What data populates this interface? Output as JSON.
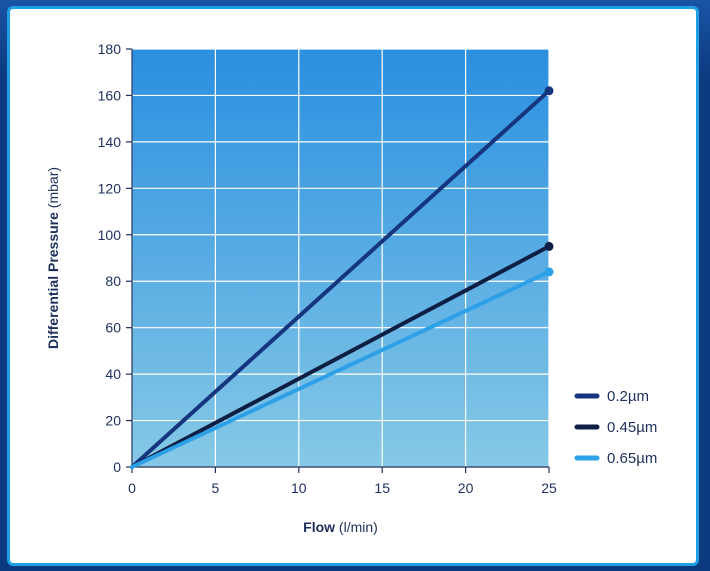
{
  "chart_data": {
    "type": "line",
    "title": "",
    "xlabel": {
      "bold": "Flow",
      "unit": " (l/min)"
    },
    "ylabel": {
      "bold": "Differential Pressure",
      "unit": " (mbar)"
    },
    "xlim": [
      0,
      25
    ],
    "ylim": [
      0,
      180
    ],
    "x_ticks": [
      "0",
      "5",
      "10",
      "15",
      "20",
      "25"
    ],
    "y_ticks": [
      "0",
      "20",
      "40",
      "60",
      "80",
      "100",
      "120",
      "140",
      "160",
      "180"
    ],
    "grid": true,
    "legend_position": "bottom-right",
    "series": [
      {
        "name": "0.2µm",
        "color": "#16357f",
        "points": [
          [
            0,
            0
          ],
          [
            25,
            162
          ]
        ]
      },
      {
        "name": "0.45µm",
        "color": "#0e1f45",
        "points": [
          [
            0,
            0
          ],
          [
            25,
            95
          ]
        ]
      },
      {
        "name": "0.65µm",
        "color": "#2ea0e8",
        "points": [
          [
            0,
            0
          ],
          [
            25,
            84
          ]
        ]
      }
    ]
  },
  "colors": {
    "plot_gradient_top": "#2a8fe0",
    "plot_gradient_bottom": "#86c9e6",
    "card_border": "#1e9fe6"
  }
}
